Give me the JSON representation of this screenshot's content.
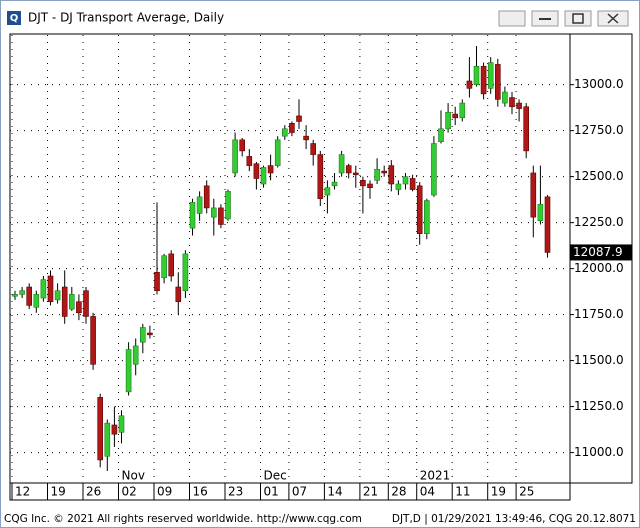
{
  "window": {
    "title": "DJT - DJ Transport Average, Daily"
  },
  "footer": {
    "left": "CQG Inc. © 2021 All rights reserved worldwide. http://www.cqg.com",
    "right": "DJT,D | 01/29/2021 13:49:46, CQG 20.12.8071"
  },
  "chart_data": {
    "type": "candlestick",
    "categories": [
      "12",
      null,
      null,
      null,
      null,
      "19",
      null,
      null,
      null,
      null,
      "26",
      null,
      null,
      null,
      null,
      "02",
      null,
      null,
      null,
      null,
      "09",
      null,
      null,
      null,
      null,
      "16",
      null,
      null,
      null,
      null,
      "23",
      null,
      null,
      null,
      null,
      "01",
      null,
      null,
      null,
      "07",
      null,
      null,
      null,
      null,
      "14",
      null,
      null,
      null,
      null,
      "21",
      null,
      null,
      null,
      "28",
      null,
      null,
      null,
      "04",
      null,
      null,
      null,
      null,
      "11",
      null,
      null,
      null,
      null,
      "19",
      null,
      null,
      null,
      "25",
      null,
      null,
      null,
      null
    ],
    "months": [
      null,
      null,
      null,
      null,
      null,
      null,
      null,
      null,
      null,
      null,
      null,
      null,
      null,
      null,
      null,
      "Nov",
      null,
      null,
      null,
      null,
      null,
      null,
      null,
      null,
      null,
      null,
      null,
      null,
      null,
      null,
      null,
      null,
      null,
      null,
      null,
      "Dec",
      null,
      null,
      null,
      null,
      null,
      null,
      null,
      null,
      null,
      null,
      null,
      null,
      null,
      null,
      null,
      null,
      null,
      null,
      null,
      null,
      null,
      "2021",
      null,
      null,
      null,
      null,
      null,
      null,
      null,
      null,
      null,
      null,
      null,
      null,
      null,
      null,
      null,
      null,
      null,
      null
    ],
    "open": [
      11850,
      11860,
      11900,
      11790,
      11840,
      11960,
      11830,
      11900,
      11780,
      11820,
      11880,
      11740,
      11300,
      10980,
      11150,
      11110,
      11330,
      11480,
      11600,
      11650,
      11980,
      11950,
      12080,
      11900,
      11880,
      12220,
      12300,
      12450,
      12280,
      12330,
      12270,
      12520,
      12700,
      12610,
      12570,
      12460,
      12560,
      12560,
      12720,
      12790,
      12830,
      12720,
      12680,
      12620,
      12400,
      12450,
      12520,
      12560,
      12520,
      12480,
      12460,
      12480,
      12530,
      12560,
      12430,
      12460,
      12490,
      12450,
      12190,
      12400,
      12690,
      12760,
      12840,
      12820,
      13020,
      13000,
      13100,
      12980,
      13110,
      12900,
      12930,
      12900,
      12880,
      12520,
      12260,
      12390
    ],
    "high": [
      11880,
      11900,
      11920,
      11880,
      11960,
      11990,
      11920,
      11990,
      11900,
      11860,
      11900,
      11760,
      11320,
      11180,
      11250,
      11230,
      11600,
      11620,
      11700,
      11690,
      12360,
      12080,
      12100,
      11980,
      12100,
      12380,
      12420,
      12480,
      12380,
      12350,
      12430,
      12740,
      12710,
      12650,
      12580,
      12560,
      12620,
      12720,
      12780,
      12800,
      12920,
      12780,
      12700,
      12640,
      12480,
      12520,
      12640,
      12570,
      12560,
      12500,
      12480,
      12600,
      12560,
      12590,
      12480,
      12520,
      12510,
      12470,
      12380,
      12720,
      12860,
      12900,
      12880,
      12920,
      13150,
      13210,
      13120,
      13150,
      13140,
      12990,
      12960,
      12920,
      12900,
      12560,
      12560,
      12400
    ],
    "low": [
      11830,
      11840,
      11780,
      11760,
      11820,
      11800,
      11810,
      11700,
      11770,
      11720,
      11700,
      11450,
      10920,
      10900,
      11030,
      11050,
      11310,
      11420,
      11540,
      11620,
      11860,
      11920,
      11930,
      11750,
      11840,
      12180,
      12260,
      12300,
      12180,
      12220,
      12260,
      12500,
      12610,
      12530,
      12430,
      12440,
      12480,
      12550,
      12700,
      12720,
      12760,
      12650,
      12560,
      12340,
      12300,
      12430,
      12500,
      12490,
      12440,
      12300,
      12380,
      12460,
      12500,
      12420,
      12400,
      12430,
      12420,
      12130,
      12160,
      12390,
      12680,
      12740,
      12780,
      12800,
      12930,
      12990,
      12920,
      12950,
      12880,
      12880,
      12840,
      12800,
      12600,
      12170,
      12240,
      12060
    ],
    "close": [
      11860,
      11880,
      11800,
      11860,
      11940,
      11820,
      11880,
      11740,
      11860,
      11760,
      11740,
      11480,
      10960,
      11160,
      11100,
      11200,
      11560,
      11580,
      11680,
      11640,
      11880,
      12070,
      11960,
      11820,
      12080,
      12360,
      12390,
      12330,
      12330,
      12240,
      12420,
      12700,
      12640,
      12560,
      12490,
      12550,
      12520,
      12700,
      12760,
      12740,
      12800,
      12700,
      12620,
      12380,
      12440,
      12470,
      12620,
      12520,
      12510,
      12450,
      12440,
      12540,
      12520,
      12460,
      12460,
      12500,
      12430,
      12190,
      12370,
      12680,
      12760,
      12850,
      12820,
      12900,
      12980,
      13100,
      12950,
      13120,
      12920,
      12960,
      12880,
      12870,
      12640,
      12280,
      12350,
      12087.9
    ],
    "up_color": "#33cc33",
    "down_color": "#b01818",
    "ylim": [
      10840,
      13270
    ],
    "yticks": [
      {
        "value": 11000,
        "label": "11000.0"
      },
      {
        "value": 11250,
        "label": "11250.0"
      },
      {
        "value": 11500,
        "label": "11500.0"
      },
      {
        "value": 11750,
        "label": "11750.0"
      },
      {
        "value": 12000,
        "label": "12000.0"
      },
      {
        "value": 12250,
        "label": "12250.0"
      },
      {
        "value": 12500,
        "label": "12500.0"
      },
      {
        "value": 12750,
        "label": "12750.0"
      },
      {
        "value": 13000,
        "label": "13000.0"
      }
    ],
    "grid": true
  }
}
